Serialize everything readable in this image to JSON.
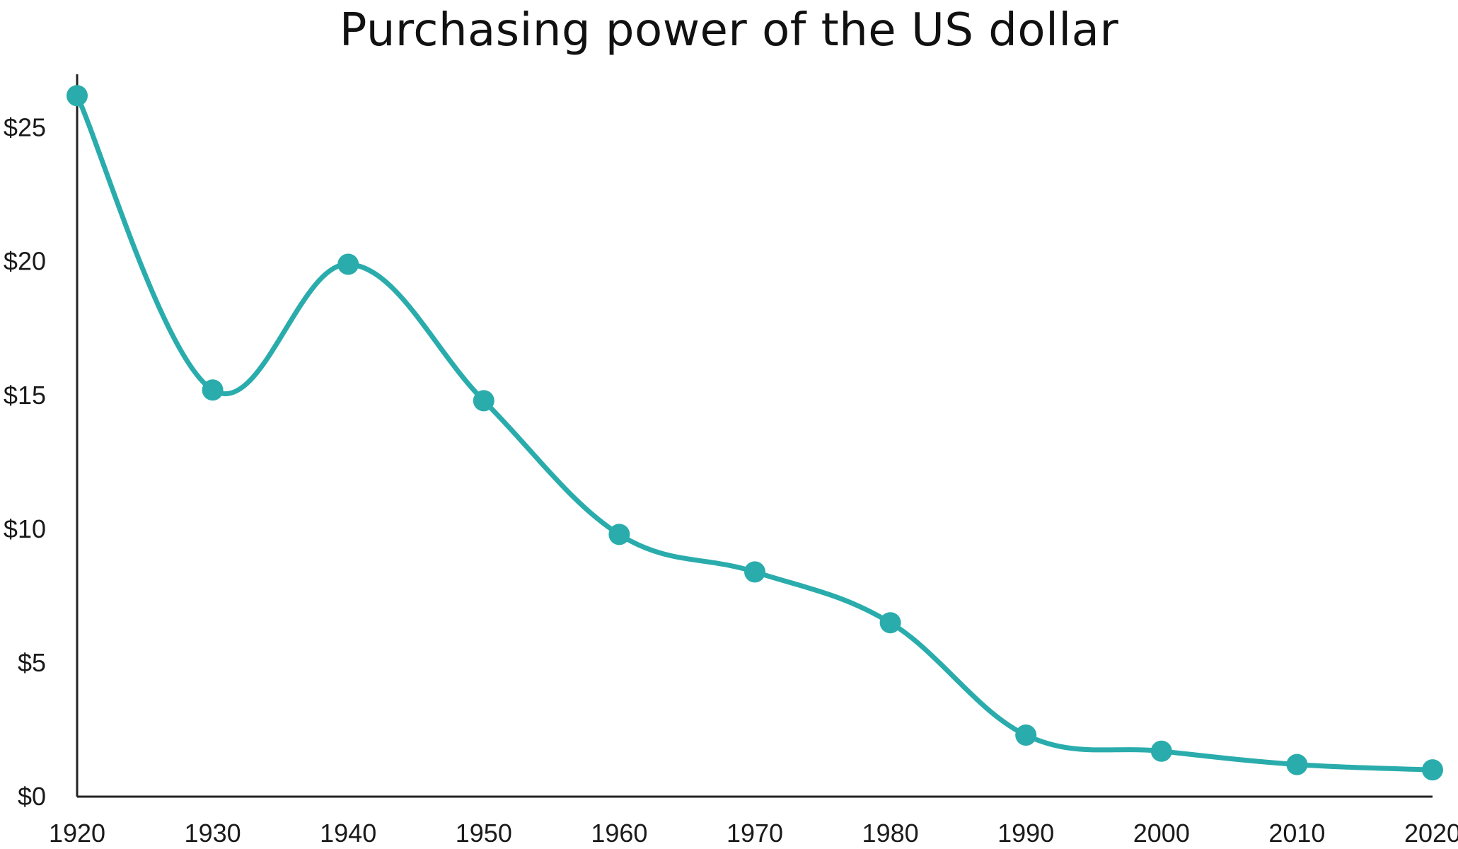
{
  "chart_data": {
    "type": "line",
    "title": "Purchasing power of the US dollar",
    "xlabel": "",
    "ylabel": "",
    "x": [
      1920,
      1930,
      1940,
      1950,
      1960,
      1970,
      1980,
      1990,
      2000,
      2010,
      2020
    ],
    "x_tick_labels": [
      "1920",
      "1930",
      "1940",
      "1950",
      "1960",
      "1970",
      "1980",
      "1990",
      "2000",
      "2010",
      "2020"
    ],
    "y_ticks": [
      0,
      5,
      10,
      15,
      20,
      25
    ],
    "y_tick_labels": [
      "$0",
      "$5",
      "$10",
      "$15",
      "$20",
      "$25"
    ],
    "ylim": [
      0,
      27
    ],
    "xlim": [
      1920,
      2020
    ],
    "series": [
      {
        "values": [
          26.2,
          15.2,
          19.9,
          14.8,
          9.8,
          8.4,
          6.5,
          2.3,
          1.7,
          1.2,
          1.0
        ]
      }
    ],
    "grid": false,
    "colors": {
      "line": "#2aacac",
      "axis": "#222222"
    }
  }
}
